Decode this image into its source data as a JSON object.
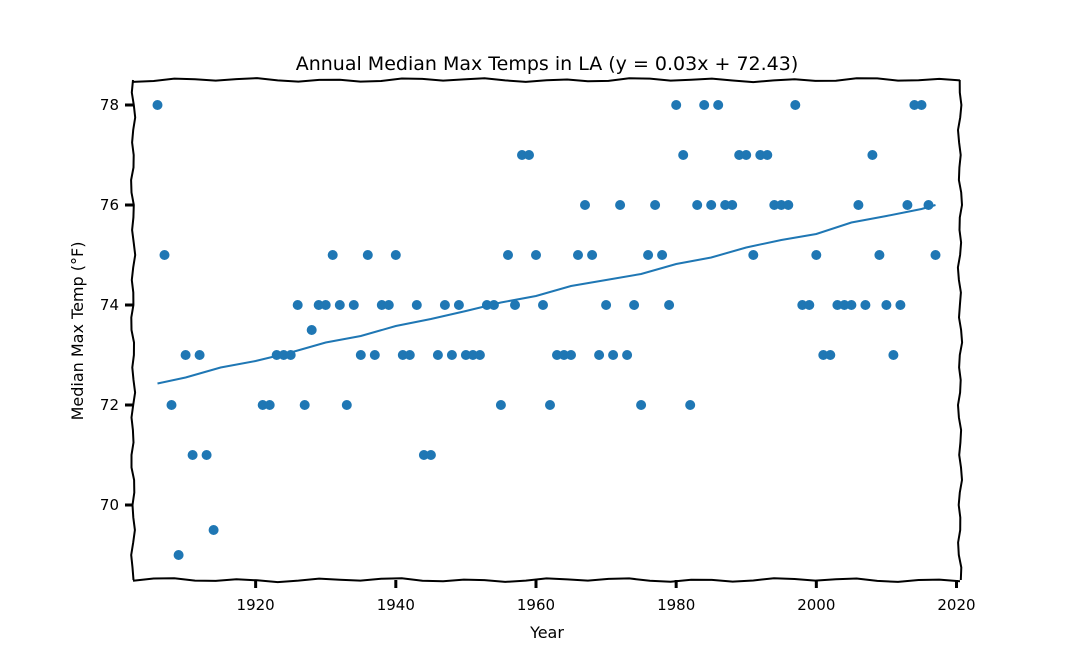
{
  "chart_data": {
    "type": "scatter",
    "title": "Annual Median Max Temps in LA (y = 0.03x + 72.43)",
    "xlabel": "Year",
    "ylabel": "Median Max Temp (°F)",
    "xlim": [
      1902.5,
      2020.5
    ],
    "ylim": [
      68.5,
      78.5
    ],
    "xticks": [
      1920,
      1940,
      1960,
      1980,
      2000,
      2020
    ],
    "yticks": [
      70,
      72,
      74,
      76,
      78
    ],
    "grid": false,
    "colors": {
      "points": "#1f77b4",
      "trend": "#1f77b4",
      "axes": "#000000"
    },
    "series": [
      {
        "kind": "points",
        "x": [
          1906,
          1907,
          1908,
          1909,
          1910,
          1911,
          1912,
          1913,
          1914,
          1921,
          1922,
          1923,
          1924,
          1925,
          1926,
          1927,
          1928,
          1929,
          1930,
          1931,
          1932,
          1933,
          1934,
          1935,
          1936,
          1937,
          1938,
          1939,
          1940,
          1941,
          1942,
          1943,
          1944,
          1945,
          1946,
          1947,
          1948,
          1949,
          1950,
          1951,
          1952,
          1953,
          1954,
          1955,
          1956,
          1957,
          1958,
          1959,
          1960,
          1961,
          1962,
          1963,
          1964,
          1965,
          1966,
          1967,
          1968,
          1969,
          1970,
          1971,
          1972,
          1973,
          1974,
          1975,
          1976,
          1977,
          1978,
          1979,
          1980,
          1981,
          1982,
          1983,
          1984,
          1985,
          1986,
          1987,
          1988,
          1989,
          1990,
          1991,
          1992,
          1993,
          1994,
          1995,
          1996,
          1997,
          1998,
          1999,
          2000,
          2001,
          2002,
          2003,
          2004,
          2005,
          2006,
          2007,
          2008,
          2009,
          2010,
          2011,
          2012,
          2013,
          2014,
          2015,
          2016,
          2017
        ],
        "y": [
          78,
          75,
          72,
          69,
          73,
          71,
          73,
          71,
          69.5,
          72,
          72,
          73,
          73,
          73,
          74,
          72,
          73.5,
          74,
          74,
          75,
          74,
          72,
          74,
          73,
          75,
          73,
          74,
          74,
          75,
          73,
          73,
          74,
          71,
          71,
          73,
          74,
          73,
          74,
          73,
          73,
          73,
          74,
          74,
          72,
          75,
          74,
          77,
          77,
          75,
          74,
          72,
          73,
          73,
          73,
          75,
          76,
          75,
          73,
          74,
          73,
          76,
          73,
          74,
          72,
          75,
          76,
          75,
          74,
          78,
          77,
          72,
          76,
          78,
          76,
          78,
          76,
          76,
          77,
          77,
          75,
          77,
          77,
          76,
          76,
          76,
          78,
          74,
          74,
          75,
          73,
          73,
          74,
          74,
          74,
          76,
          74,
          77,
          75,
          74,
          73,
          74,
          76,
          78,
          78,
          76,
          75
        ]
      },
      {
        "kind": "trend",
        "x": [
          1906,
          1910,
          1915,
          1920,
          1925,
          1930,
          1935,
          1940,
          1945,
          1950,
          1955,
          1960,
          1965,
          1970,
          1975,
          1980,
          1985,
          1990,
          1995,
          2000,
          2005,
          2010,
          2015,
          2017
        ],
        "y": [
          72.43,
          72.55,
          72.75,
          72.88,
          73.05,
          73.25,
          73.38,
          73.58,
          73.72,
          73.88,
          74.05,
          74.18,
          74.38,
          74.5,
          74.62,
          74.82,
          74.95,
          75.15,
          75.3,
          75.42,
          75.65,
          75.78,
          75.92,
          76.0
        ]
      }
    ]
  }
}
